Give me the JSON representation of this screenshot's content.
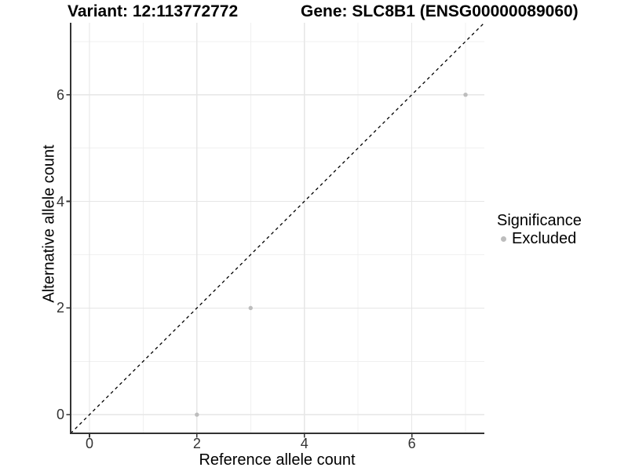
{
  "chart_data": {
    "type": "scatter",
    "title_left": "Variant: 12:113772772",
    "title_right": "Gene: SLC8B1 (ENSG00000089060)",
    "xlabel": "Reference allele count",
    "ylabel": "Alternative allele count",
    "xlim": [
      0,
      7
    ],
    "ylim": [
      0,
      7
    ],
    "expand_frac": 0.05,
    "x_ticks": [
      0,
      2,
      4,
      6
    ],
    "y_ticks": [
      0,
      2,
      4,
      6
    ],
    "x_minor_ticks": [
      1,
      3,
      5,
      7
    ],
    "y_minor_ticks": [
      1,
      3,
      5,
      7
    ],
    "grid": true,
    "reference_line": {
      "slope": 1,
      "intercept": 0,
      "style": "dashed",
      "color": "#000000"
    },
    "series": [
      {
        "name": "Excluded",
        "color": "#bdbdbd",
        "points": [
          {
            "x": 2,
            "y": 0
          },
          {
            "x": 3,
            "y": 2
          },
          {
            "x": 7,
            "y": 6
          }
        ]
      }
    ],
    "legend": {
      "title": "Significance",
      "position": "right",
      "items": [
        {
          "label": "Excluded",
          "color": "#bdbdbd"
        }
      ]
    },
    "colors": {
      "background": "#ffffff",
      "axis_line": "#333333",
      "tick_label": "#333333",
      "grid_major": "#e6e6e6",
      "grid_minor": "#f0f0f0"
    }
  }
}
